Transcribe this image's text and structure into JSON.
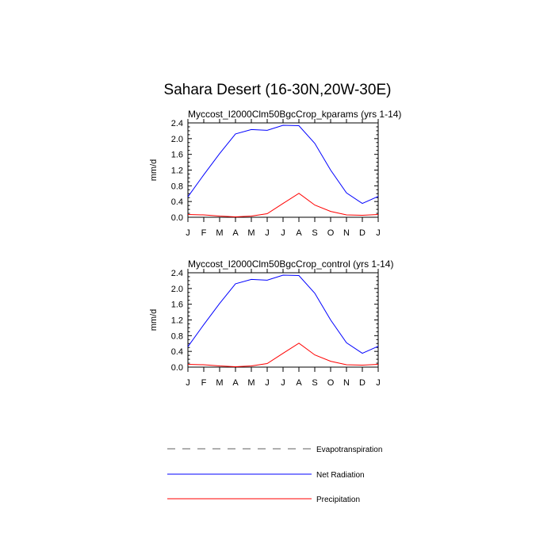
{
  "figure": {
    "title": "Sahara Desert (16-30N,20W-30E)"
  },
  "legend": {
    "items": [
      {
        "label": "Evapotranspiration",
        "color": "#7f7f7f",
        "style": "dashed"
      },
      {
        "label": "Net Radiation",
        "color": "#0000ff",
        "style": "solid"
      },
      {
        "label": "Precipitation",
        "color": "#ff0000",
        "style": "solid"
      }
    ]
  },
  "chart_data": [
    {
      "type": "line",
      "title": "Myccost_I2000Clm50BgcCrop_kparams (yrs 1-14)",
      "xlabel": "",
      "ylabel": "mm/d",
      "categories": [
        "J",
        "F",
        "M",
        "A",
        "M",
        "J",
        "J",
        "A",
        "S",
        "O",
        "N",
        "D",
        "J"
      ],
      "ylim": [
        0,
        2.4
      ],
      "yticks": [
        "0.0",
        "0.4",
        "0.8",
        "1.2",
        "1.6",
        "2.0",
        "2.4"
      ],
      "grid": false,
      "series": [
        {
          "name": "Net Radiation",
          "color": "#0000ff",
          "values": [
            0.52,
            1.08,
            1.62,
            2.12,
            2.23,
            2.21,
            2.34,
            2.33,
            1.88,
            1.2,
            0.62,
            0.35,
            0.53
          ]
        },
        {
          "name": "Precipitation",
          "color": "#ff0000",
          "values": [
            0.07,
            0.06,
            0.03,
            0.01,
            0.03,
            0.09,
            0.35,
            0.61,
            0.31,
            0.15,
            0.06,
            0.05,
            0.07
          ]
        }
      ]
    },
    {
      "type": "line",
      "title": "Myccost_I2000Clm50BgcCrop_control (yrs 1-14)",
      "xlabel": "",
      "ylabel": "mm/d",
      "categories": [
        "J",
        "F",
        "M",
        "A",
        "M",
        "J",
        "J",
        "A",
        "S",
        "O",
        "N",
        "D",
        "J"
      ],
      "ylim": [
        0,
        2.4
      ],
      "yticks": [
        "0.0",
        "0.4",
        "0.8",
        "1.2",
        "1.6",
        "2.0",
        "2.4"
      ],
      "grid": false,
      "series": [
        {
          "name": "Net Radiation",
          "color": "#0000ff",
          "values": [
            0.52,
            1.08,
            1.62,
            2.12,
            2.23,
            2.21,
            2.34,
            2.33,
            1.88,
            1.2,
            0.62,
            0.35,
            0.53
          ]
        },
        {
          "name": "Precipitation",
          "color": "#ff0000",
          "values": [
            0.07,
            0.06,
            0.03,
            0.01,
            0.03,
            0.09,
            0.35,
            0.61,
            0.31,
            0.15,
            0.06,
            0.05,
            0.07
          ]
        }
      ]
    }
  ]
}
